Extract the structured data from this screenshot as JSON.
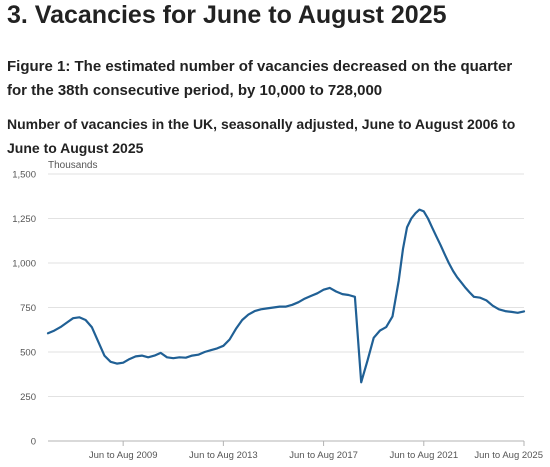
{
  "section": {
    "heading": "3.  Vacancies for June to August 2025"
  },
  "figure": {
    "title": "Figure 1: The estimated number of vacancies decreased on the quarter for the 38th consecutive period, by 10,000 to 728,000",
    "subtitle": "Number of vacancies in the UK, seasonally adjusted, June to August 2006 to June to August 2025"
  },
  "chart_data": {
    "type": "line",
    "ylabel": "Thousands",
    "xlabel": "",
    "ylim": [
      0,
      1500
    ],
    "yticks": [
      0,
      250,
      500,
      750,
      1000,
      1250,
      1500
    ],
    "ytick_labels": [
      "0",
      "250",
      "500",
      "750",
      "1,000",
      "1,250",
      "1,500"
    ],
    "xtick_labels": [
      "Jun to Aug 2009",
      "Jun to Aug 2013",
      "Jun to Aug 2017",
      "Jun to Aug 2021",
      "Jun to Aug 2025"
    ],
    "xtick_values": [
      2009,
      2013,
      2017,
      2021,
      2025
    ],
    "grid": true,
    "legend": "none",
    "color": "#206095",
    "series": [
      {
        "x": [
          2006.0,
          2006.25,
          2006.5,
          2006.75,
          2007.0,
          2007.25,
          2007.5,
          2007.75,
          2008.0,
          2008.25,
          2008.5,
          2008.75,
          2009.0,
          2009.25,
          2009.5,
          2009.75,
          2010.0,
          2010.25,
          2010.5,
          2010.75,
          2011.0,
          2011.25,
          2011.5,
          2011.75,
          2012.0,
          2012.25,
          2012.5,
          2012.75,
          2013.0,
          2013.25,
          2013.5,
          2013.75,
          2014.0,
          2014.25,
          2014.5,
          2014.75,
          2015.0,
          2015.25,
          2015.5,
          2015.75,
          2016.0,
          2016.25,
          2016.5,
          2016.75,
          2017.0,
          2017.25,
          2017.5,
          2017.75,
          2018.0,
          2018.25,
          2018.5,
          2018.75,
          2019.0,
          2019.25,
          2019.5,
          2019.75,
          2020.0,
          2020.17,
          2020.33,
          2020.5,
          2020.67,
          2020.83,
          2021.0,
          2021.17,
          2021.33,
          2021.5,
          2021.67,
          2021.83,
          2022.0,
          2022.17,
          2022.33,
          2022.5,
          2022.67,
          2022.83,
          2023.0,
          2023.25,
          2023.5,
          2023.75,
          2024.0,
          2024.25,
          2024.5,
          2024.75,
          2025.0
        ],
        "values": [
          605,
          620,
          640,
          665,
          690,
          695,
          680,
          640,
          560,
          480,
          445,
          435,
          440,
          460,
          475,
          480,
          470,
          480,
          495,
          470,
          465,
          470,
          468,
          480,
          485,
          500,
          510,
          520,
          535,
          570,
          630,
          680,
          710,
          730,
          740,
          745,
          750,
          755,
          755,
          765,
          780,
          800,
          815,
          830,
          850,
          860,
          840,
          825,
          820,
          810,
          330,
          450,
          580,
          620,
          640,
          700,
          900,
          1080,
          1200,
          1250,
          1280,
          1300,
          1290,
          1250,
          1200,
          1150,
          1100,
          1050,
          1000,
          955,
          920,
          890,
          860,
          835,
          810,
          805,
          790,
          760,
          740,
          730,
          725,
          720,
          728
        ]
      }
    ]
  }
}
